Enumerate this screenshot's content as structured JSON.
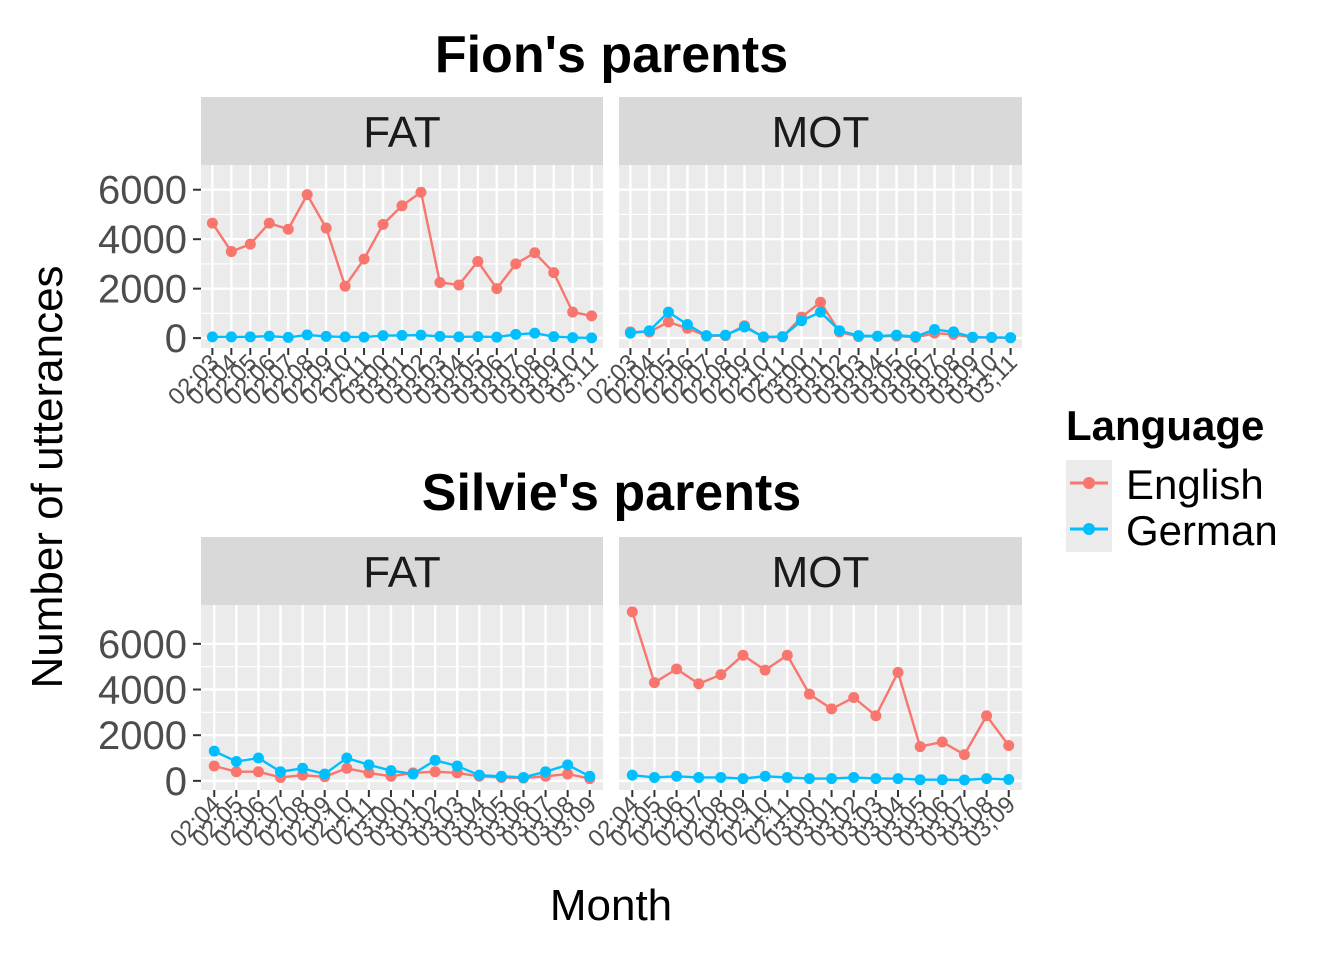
{
  "chart_data": [
    {
      "type": "line",
      "title": "Fion's parents",
      "ylim": [
        -400,
        7000
      ],
      "yticks": [
        0,
        2000,
        4000,
        6000
      ],
      "x": [
        "02;03",
        "02;04",
        "02;05",
        "02;06",
        "02;07",
        "02;08",
        "02;09",
        "02;10",
        "02;11",
        "03;00",
        "03;01",
        "03;02",
        "03;03",
        "03;04",
        "03;05",
        "03;06",
        "03;07",
        "03;08",
        "03;09",
        "03;10",
        "03;11"
      ],
      "facets": [
        {
          "label": "FAT",
          "series": [
            {
              "name": "English",
              "values": [
                4650,
                3500,
                3800,
                4650,
                4400,
                5800,
                4450,
                2100,
                3200,
                4600,
                5350,
                5900,
                2250,
                2150,
                3100,
                2000,
                3000,
                3450,
                2650,
                1050,
                900
              ]
            },
            {
              "name": "German",
              "values": [
                50,
                50,
                50,
                80,
                30,
                130,
                70,
                50,
                40,
                100,
                110,
                120,
                70,
                50,
                60,
                40,
                150,
                200,
                60,
                20,
                10
              ]
            }
          ]
        },
        {
          "label": "MOT",
          "series": [
            {
              "name": "English",
              "values": [
                250,
                250,
                650,
                400,
                80,
                100,
                500,
                30,
                50,
                850,
                1450,
                250,
                60,
                70,
                80,
                30,
                200,
                150,
                20,
                20,
                10
              ]
            },
            {
              "name": "German",
              "values": [
                200,
                300,
                1050,
                550,
                100,
                120,
                450,
                50,
                60,
                700,
                1050,
                300,
                100,
                80,
                120,
                60,
                350,
                250,
                40,
                30,
                20
              ]
            }
          ]
        }
      ]
    },
    {
      "type": "line",
      "title": "Silvie's parents",
      "ylim": [
        -400,
        7700
      ],
      "yticks": [
        0,
        2000,
        4000,
        6000
      ],
      "x": [
        "02;04",
        "02;05",
        "02;06",
        "02;07",
        "02;08",
        "02;09",
        "02;10",
        "02;11",
        "03;00",
        "03;01",
        "03;02",
        "03;03",
        "03;04",
        "03;05",
        "03;06",
        "03;07",
        "03;08",
        "03;09"
      ],
      "facets": [
        {
          "label": "FAT",
          "series": [
            {
              "name": "English",
              "values": [
                650,
                400,
                400,
                150,
                250,
                180,
                550,
                350,
                200,
                350,
                400,
                350,
                200,
                150,
                120,
                200,
                300,
                100
              ]
            },
            {
              "name": "German",
              "values": [
                1300,
                850,
                1000,
                400,
                550,
                300,
                1000,
                700,
                450,
                300,
                900,
                650,
                250,
                200,
                150,
                400,
                700,
                200
              ]
            }
          ]
        },
        {
          "label": "MOT",
          "series": [
            {
              "name": "English",
              "values": [
                7400,
                4300,
                4900,
                4250,
                4650,
                5500,
                4850,
                5500,
                3800,
                3150,
                3650,
                2850,
                4750,
                1500,
                1700,
                1150,
                2850,
                1550
              ]
            },
            {
              "name": "German",
              "values": [
                250,
                150,
                200,
                150,
                150,
                100,
                200,
                150,
                100,
                100,
                150,
                100,
                100,
                50,
                50,
                40,
                100,
                60
              ]
            }
          ]
        }
      ]
    }
  ],
  "legend": {
    "title": "Language",
    "entries": [
      {
        "name": "English",
        "color": "#F8766D"
      },
      {
        "name": "German",
        "color": "#00BFFF"
      }
    ]
  },
  "axes": {
    "xlabel": "Month",
    "ylabel": "Number of utterances"
  },
  "colors": {
    "panel": "#EBEBEB",
    "strip": "#D9D9D9",
    "grid": "#FFFFFF"
  }
}
